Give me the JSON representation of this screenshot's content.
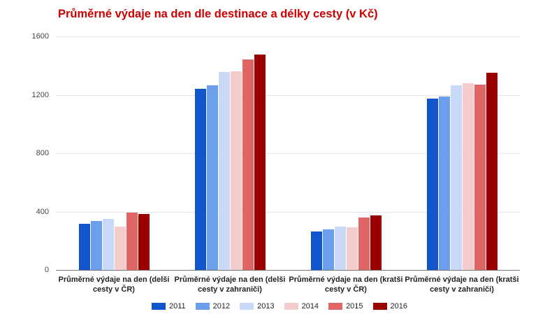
{
  "chart_data": {
    "type": "bar",
    "title": "Průměrné výdaje na den dle destinace a délky cesty (v Kč)",
    "title_color": "#cc0000",
    "categories": [
      "Průměrné výdaje na den (delši cesty v ČR)",
      "Průměrné výdaje na den (delši cesty v zahraniči)",
      "Průměrné výdaje na den (kratši cesty v ČR)",
      "Průměrné výdaje na den (kratši cesty v zahraniči)"
    ],
    "series": [
      {
        "name": "2011",
        "color": "#1155cc",
        "values": [
          315,
          1240,
          265,
          1175
        ]
      },
      {
        "name": "2012",
        "color": "#6d9eeb",
        "values": [
          335,
          1265,
          280,
          1190
        ]
      },
      {
        "name": "2013",
        "color": "#c9daf8",
        "values": [
          350,
          1355,
          295,
          1265
        ]
      },
      {
        "name": "2014",
        "color": "#f4cccc",
        "values": [
          295,
          1360,
          290,
          1280
        ]
      },
      {
        "name": "2015",
        "color": "#e06666",
        "values": [
          395,
          1440,
          360,
          1270
        ]
      },
      {
        "name": "2016",
        "color": "#990000",
        "values": [
          385,
          1475,
          375,
          1350
        ]
      }
    ],
    "xlabel": "",
    "ylabel": "",
    "ylim": [
      0,
      1600
    ],
    "yticks": [
      0,
      400,
      800,
      1200,
      1600
    ],
    "grid": true,
    "legend_position": "bottom"
  }
}
